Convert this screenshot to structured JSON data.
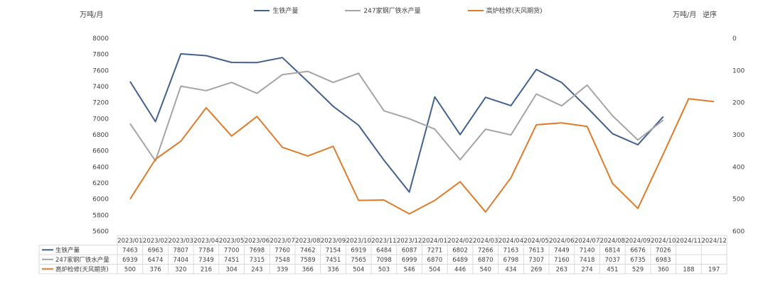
{
  "chart_data": {
    "type": "line",
    "left_axis_unit": "万吨/月",
    "right_axis_unit": "万吨/月",
    "right_axis_note": "逆序",
    "y_left": {
      "min": 5600,
      "max": 8000,
      "ticks": [
        "8000",
        "7800",
        "7600",
        "7400",
        "7200",
        "7000",
        "6800",
        "6600",
        "6400",
        "6200",
        "6000",
        "5800",
        "5600"
      ]
    },
    "y_right": {
      "min": 0,
      "max": 600,
      "reversed": true,
      "ticks": [
        "0",
        "100",
        "200",
        "300",
        "400",
        "500",
        "600"
      ]
    },
    "categories": [
      "2023/01",
      "2023/02",
      "2023/03",
      "2023/04",
      "2023/05",
      "2023/06",
      "2023/07",
      "2023/08",
      "2023/09",
      "2023/10",
      "2023/11",
      "2023/12",
      "2024/01",
      "2024/02",
      "2024/03",
      "2024/04",
      "2024/05",
      "2024/06",
      "2024/07",
      "2024/08",
      "2024/09",
      "2024/10",
      "2024/11",
      "2024/12"
    ],
    "series": [
      {
        "name": "生铁产量",
        "axis": "left",
        "color": "#44618e",
        "values": [
          7463,
          6963,
          7807,
          7784,
          7700,
          7698,
          7760,
          7462,
          7154,
          6919,
          6484,
          6087,
          7271,
          6802,
          7266,
          7163,
          7613,
          7449,
          7140,
          6814,
          6676,
          7026,
          null,
          null
        ]
      },
      {
        "name": "247家钢厂铁水产量",
        "axis": "left",
        "color": "#a5a5a5",
        "values": [
          6939,
          6474,
          7404,
          7349,
          7451,
          7315,
          7548,
          7589,
          7451,
          7565,
          7098,
          6999,
          6870,
          6489,
          6870,
          6798,
          7307,
          7160,
          7418,
          7037,
          6735,
          6983,
          null,
          null
        ]
      },
      {
        "name": "高炉检修(天风期货)",
        "axis": "right",
        "color": "#e07b2a",
        "values": [
          500,
          376,
          320,
          216,
          304,
          243,
          339,
          366,
          336,
          504,
          503,
          546,
          504,
          446,
          540,
          434,
          269,
          263,
          274,
          451,
          529,
          360,
          188,
          197
        ]
      }
    ]
  }
}
